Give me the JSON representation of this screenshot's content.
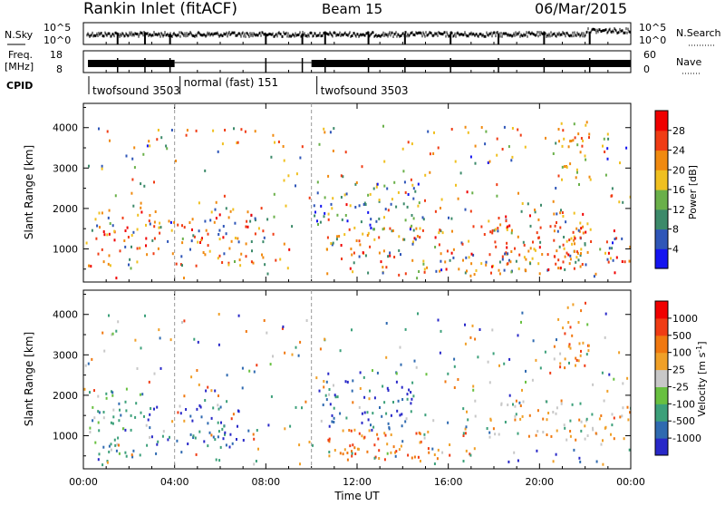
{
  "header": {
    "station": "Rankin Inlet (fitACF)",
    "beam": "Beam 15",
    "date": "06/Mar/2015"
  },
  "noise_panel": {
    "left_label": "N.Sky",
    "left_ticks": [
      "10^5",
      "10^0"
    ],
    "right_label": "N.Search",
    "right_ticks": [
      "10^5",
      "10^0"
    ]
  },
  "freq_panel": {
    "left_label_1": "Freq.",
    "left_label_2": "[MHz]",
    "left_ticks": [
      "18",
      "8"
    ],
    "right_label": "Nave",
    "right_ticks": [
      "60",
      "0"
    ]
  },
  "cpid": {
    "label": "CPID",
    "segments": [
      {
        "name": "twofsound 3503",
        "start_hour": 0.0
      },
      {
        "name": "normal (fast) 151",
        "start_hour": 4.0
      },
      {
        "name": "twofsound 3503",
        "start_hour": 10.0
      }
    ]
  },
  "chart_data": [
    {
      "type": "heatmap",
      "title": "",
      "xlabel": "Time UT",
      "ylabel": "Slant Range [km]",
      "xlim": [
        0,
        24
      ],
      "ylim": [
        180,
        4600
      ],
      "x_ticks": [
        "00:00",
        "04:00",
        "08:00",
        "12:00",
        "16:00",
        "20:00",
        "00:00"
      ],
      "y_ticks": [
        1000,
        2000,
        3000,
        4000
      ],
      "colorbar": {
        "label": "Power [dB]",
        "ticks": [
          4,
          8,
          12,
          16,
          20,
          24,
          28
        ],
        "colors": [
          "#1414f0",
          "#2f56b8",
          "#3c8a6a",
          "#6ab04a",
          "#f0c020",
          "#f08a10",
          "#f03c14",
          "#f00000"
        ]
      },
      "echo_regions": [
        {
          "t0": 0.2,
          "t1": 8.0,
          "r0": 600,
          "r1": 2100,
          "level": "high"
        },
        {
          "t0": 10.6,
          "t1": 24.0,
          "r0": 400,
          "r1": 1600,
          "level": "high"
        },
        {
          "t0": 18.0,
          "t1": 22.0,
          "r0": 500,
          "r1": 2000,
          "level": "high"
        },
        {
          "t0": 10.0,
          "t1": 15.0,
          "r0": 1500,
          "r1": 2700,
          "level": "low"
        },
        {
          "t0": 20.8,
          "t1": 22.3,
          "r0": 2600,
          "r1": 4400,
          "level": "mid"
        }
      ]
    },
    {
      "type": "heatmap",
      "title": "",
      "xlabel": "Time UT",
      "ylabel": "Slant Range [km]",
      "xlim": [
        0,
        24
      ],
      "ylim": [
        180,
        4600
      ],
      "x_ticks": [
        "00:00",
        "04:00",
        "08:00",
        "12:00",
        "16:00",
        "20:00",
        "00:00"
      ],
      "y_ticks": [
        1000,
        2000,
        3000,
        4000
      ],
      "colorbar": {
        "label": "Velocity [m s^-1]",
        "ticks": [
          "1000",
          "500",
          "100",
          "25",
          "-25",
          "-100",
          "-500",
          "-1000"
        ],
        "colors": [
          "#2828c8",
          "#2f6ab0",
          "#3ca07a",
          "#68c040",
          "#c8c8c8",
          "#f0a028",
          "#f07810",
          "#f03c14",
          "#f00000"
        ]
      },
      "echo_regions": [
        {
          "t0": 0.2,
          "t1": 2.8,
          "r0": 500,
          "r1": 2200,
          "level": "green"
        },
        {
          "t0": 2.8,
          "t1": 7.0,
          "r0": 700,
          "r1": 1800,
          "level": "blue"
        },
        {
          "t0": 10.5,
          "t1": 17.5,
          "r0": 400,
          "r1": 1200,
          "level": "orange"
        },
        {
          "t0": 10.3,
          "t1": 14.5,
          "r0": 1200,
          "r1": 2600,
          "level": "blue"
        },
        {
          "t0": 17.5,
          "t1": 24.0,
          "r0": 900,
          "r1": 1900,
          "level": "grey"
        },
        {
          "t0": 20.8,
          "t1": 22.2,
          "r0": 2600,
          "r1": 4400,
          "level": "orange"
        }
      ]
    }
  ]
}
